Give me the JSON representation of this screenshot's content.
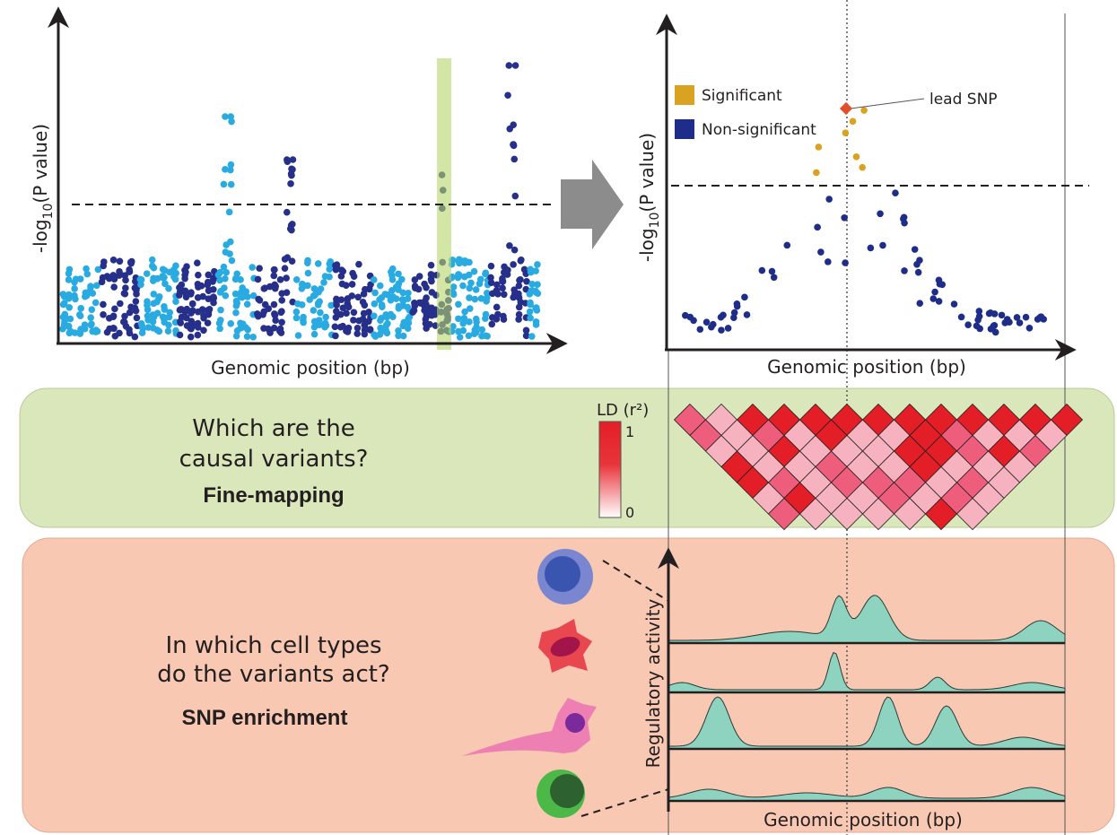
{
  "manhattan": {
    "y_label": {
      "prefix": "-log",
      "subscript": "10",
      "suffix": "(P value)"
    },
    "x_label": "Genomic position (bp)"
  },
  "locus_plot": {
    "y_label": {
      "prefix": "-log",
      "subscript": "10",
      "suffix": "(P value)"
    },
    "x_label": "Genomic position (bp)",
    "legend": [
      {
        "name": "Significant",
        "color": "#d9a321"
      },
      {
        "name": "Non-significant",
        "color": "#1f2d8a"
      }
    ],
    "annotation": "lead SNP"
  },
  "fine_mapping": {
    "question": [
      "Which are the",
      "causal variants?"
    ],
    "method": "Fine-mapping",
    "ld_scale": {
      "title": "LD (r²)",
      "max_label": "1",
      "min_label": "0"
    }
  },
  "enrichment": {
    "question": [
      "In which cell types",
      "do the variants act?"
    ],
    "method": "SNP enrichment",
    "y_label": "Regulatory activity",
    "x_label": "Genomic position (bp)"
  }
}
